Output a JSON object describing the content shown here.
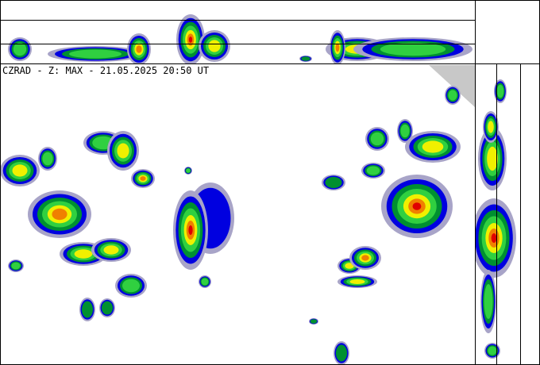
{
  "header": {
    "title": "CZRAD - Z: MAX - 21.05.2025 20:50 UT"
  }
}
